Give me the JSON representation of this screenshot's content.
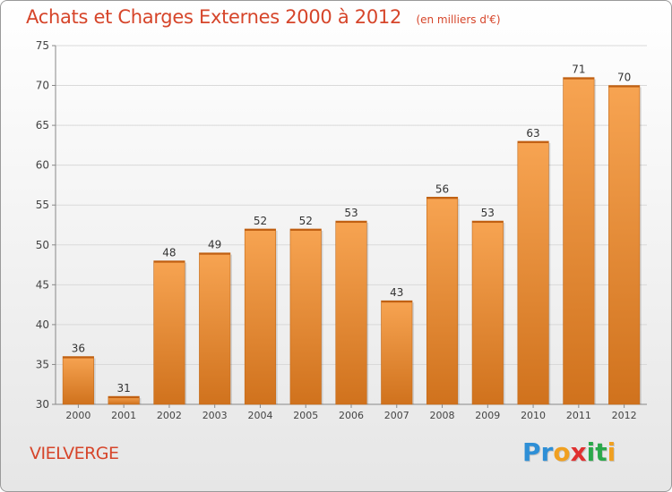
{
  "title": "Achats et Charges Externes 2000 à 2012",
  "subtitle": "(en milliers d'€)",
  "commune": "VIELVERGE",
  "logo": {
    "letters": [
      "P",
      "r",
      "o",
      "x",
      "i",
      "t",
      "i"
    ],
    "colors": [
      "#2e8fd6",
      "#2e8fd6",
      "#f0a020",
      "#e03030",
      "#2aa84a",
      "#2aa84a",
      "#f0a020"
    ]
  },
  "colors": {
    "accent": "#d6452a",
    "bar_top": "#f7a452",
    "bar_bottom": "#d0721d",
    "grid": "#d9d9d9",
    "axis": "#888888"
  },
  "chart_data": {
    "type": "bar",
    "categories": [
      "2000",
      "2001",
      "2002",
      "2003",
      "2004",
      "2005",
      "2006",
      "2007",
      "2008",
      "2009",
      "2010",
      "2011",
      "2012"
    ],
    "values": [
      36,
      31,
      48,
      49,
      52,
      52,
      53,
      43,
      56,
      53,
      63,
      71,
      70
    ],
    "ylim": [
      30,
      75
    ],
    "yticks": [
      30,
      35,
      40,
      45,
      50,
      55,
      60,
      65,
      70,
      75
    ],
    "grid": true,
    "legend": "none"
  }
}
